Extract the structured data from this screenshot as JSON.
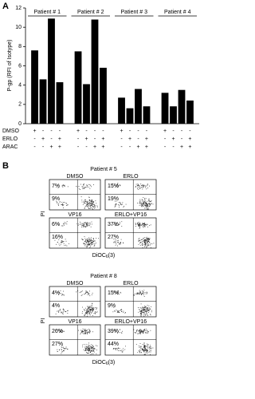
{
  "panel_labels": [
    "A",
    "B"
  ],
  "chart_data": {
    "type": "bar",
    "ylabel": "P-gp (RFI of Isotype)",
    "groups": [
      "Patient # 1",
      "Patient # 2",
      "Patient # 3",
      "Patient # 4"
    ],
    "values": [
      7.6,
      4.6,
      10.9,
      4.3,
      7.5,
      4.1,
      10.8,
      5.8,
      2.7,
      1.6,
      3.6,
      1.8,
      3.2,
      1.8,
      3.5,
      2.4
    ],
    "color": "#000000",
    "ylim": [
      0,
      12
    ],
    "yticks": [
      0,
      2,
      4,
      6,
      8,
      10,
      12
    ],
    "treatments": [
      {
        "name": "DMSO",
        "signs": [
          "+",
          "-",
          "-",
          "-",
          "+",
          "-",
          "-",
          "-",
          "+",
          "-",
          "-",
          "-",
          "+",
          "-",
          "-",
          "-"
        ]
      },
      {
        "name": "ERLO",
        "signs": [
          "-",
          "+",
          "-",
          "+",
          "-",
          "+",
          "-",
          "+",
          "-",
          "+",
          "-",
          "+",
          "-",
          "+",
          "-",
          "+"
        ]
      },
      {
        "name": "ARAC",
        "signs": [
          "-",
          "-",
          "+",
          "+",
          "-",
          "-",
          "+",
          "+",
          "-",
          "-",
          "+",
          "+",
          "-",
          "-",
          "+",
          "+"
        ]
      }
    ]
  },
  "panel_b": {
    "ylabel": "PI",
    "xlabel": {
      "base": "DiOC",
      "sub": "6",
      "tail": "(3)"
    },
    "patients": [
      {
        "title": "Patient # 5",
        "plots": [
          {
            "label": "DMSO",
            "upper": "7%",
            "lower": "9%"
          },
          {
            "label": "ERLO",
            "upper": "15%",
            "lower": "19%"
          },
          {
            "label": "VP16",
            "upper": "6%",
            "lower": "16%"
          },
          {
            "label": "ERLO+VP16",
            "upper": "37%",
            "lower": "27%"
          }
        ]
      },
      {
        "title": "Patient # 8",
        "plots": [
          {
            "label": "DMSO",
            "upper": "4%",
            "lower": "4%"
          },
          {
            "label": "ERLO",
            "upper": "15%",
            "lower": "9%"
          },
          {
            "label": "VP16",
            "upper": "26%",
            "lower": "27%"
          },
          {
            "label": "ERLO+VP16",
            "upper": "39%",
            "lower": "44%"
          }
        ]
      }
    ]
  }
}
